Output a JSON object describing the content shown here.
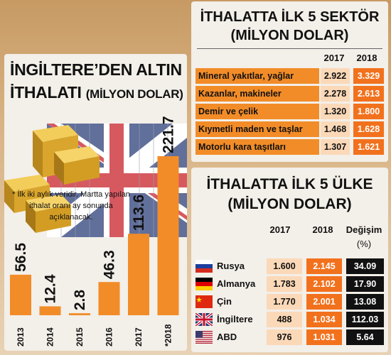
{
  "colors": {
    "orange": "#f28c28",
    "dark_orange": "#f2711d",
    "light_orange": "#fbd9b8",
    "black": "#111111"
  },
  "left_panel": {
    "title_line1": "İNGİLTERE’DEN ALTIN",
    "title_line2": "İTHALATI",
    "title_unit": "(MİLYON DOLAR)",
    "note": "* İlk iki aylık veridir. Martta yapılan ithalat oranı ay sonunda açıklanacak.",
    "image": "gold-bars-and-union-jack-container"
  },
  "chart_data": {
    "type": "bar",
    "title": "İNGİLTERE’DEN ALTIN İTHALATI (MİLYON DOLAR)",
    "categories": [
      "2013",
      "2014",
      "2015",
      "2016",
      "2017",
      "*2018"
    ],
    "values": [
      56.5,
      12.4,
      2.8,
      46.3,
      113.6,
      221.7
    ],
    "value_labels": [
      "56.5",
      "12.4",
      "2.8",
      "46.3",
      "113.6",
      "221.7"
    ],
    "ylim": [
      0,
      221.7
    ],
    "grid": false,
    "color": "#f28c28"
  },
  "sector_table": {
    "title_line1": "İTHALATTA İLK 5 SEKTÖR",
    "title_line2": "(MİLYON DOLAR)",
    "headers": [
      "2017",
      "2018"
    ],
    "rows": [
      {
        "label": "Mineral yakıtlar, yağlar",
        "v2017": "2.922",
        "v2018": "3.329"
      },
      {
        "label": "Kazanlar, makineler",
        "v2017": "2.278",
        "v2018": "2.613"
      },
      {
        "label": "Demir ve çelik",
        "v2017": "1.320",
        "v2018": "1.800"
      },
      {
        "label": "Kıymetli maden ve taşlar",
        "v2017": "1.468",
        "v2018": "1.628"
      },
      {
        "label": "Motorlu kara taşıtları",
        "v2017": "1.307",
        "v2018": "1.621"
      }
    ]
  },
  "country_table": {
    "title_line1": "İTHALATTA İLK 5 ÜLKE",
    "title_line2": "(MİLYON DOLAR)",
    "headers": [
      "2017",
      "2018",
      "Değişim",
      "(%)"
    ],
    "rows": [
      {
        "flag": "russia-flag",
        "name": "Rusya",
        "v2017": "1.600",
        "v2018": "2.145",
        "change": "34.09"
      },
      {
        "flag": "germany-flag",
        "name": "Almanya",
        "v2017": "1.783",
        "v2018": "2.102",
        "change": "17.90"
      },
      {
        "flag": "china-flag",
        "name": "Çin",
        "v2017": "1.770",
        "v2018": "2.001",
        "change": "13.08"
      },
      {
        "flag": "uk-flag",
        "name": "İngiltere",
        "v2017": "488",
        "v2018": "1.034",
        "change": "112.03"
      },
      {
        "flag": "usa-flag",
        "name": "ABD",
        "v2017": "976",
        "v2018": "1.031",
        "change": "5.64"
      }
    ]
  }
}
